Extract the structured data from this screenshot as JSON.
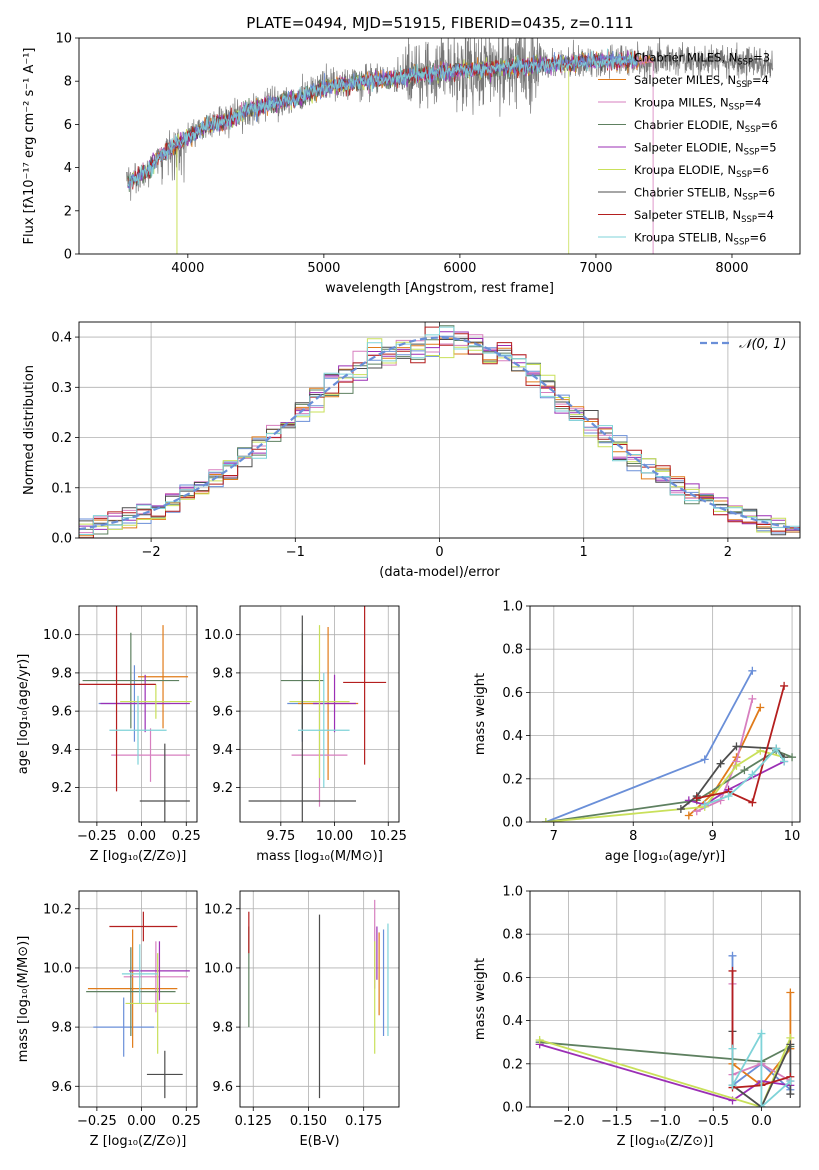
{
  "title": "PLATE=0494, MJD=51915, FIBERID=0435, z=0.111",
  "colors": [
    "#6a8fd8",
    "#e07b1a",
    "#d77fbf",
    "#5e8060",
    "#9b2fb5",
    "#c9e05a",
    "#4d4d4d",
    "#b41f1f",
    "#7fd3d8"
  ],
  "chart_data": [
    {
      "id": "spectrum",
      "type": "line",
      "title": "PLATE=0494, MJD=51915, FIBERID=0435, z=0.111",
      "xlabel": "wavelength [Angstrom, rest frame]",
      "ylabel": "Flux [fλ10⁻¹⁷ erg cm⁻² s⁻¹ A⁻¹]",
      "xlim": [
        3200,
        8500
      ],
      "ylim": [
        0,
        10
      ],
      "xticks": [
        4000,
        5000,
        6000,
        7000,
        8000
      ],
      "yticks": [
        0,
        2,
        4,
        6,
        8,
        10
      ],
      "grid": false,
      "legend_position": "right",
      "legend": [
        {
          "main": "Chabrier MILES, N",
          "sub": "SSP",
          "tail": "=3"
        },
        {
          "main": "Salpeter MILES, N",
          "sub": "SSP",
          "tail": "=4"
        },
        {
          "main": "Kroupa MILES, N",
          "sub": "SSP",
          "tail": "=4"
        },
        {
          "main": "Chabrier ELODIE, N",
          "sub": "SSP",
          "tail": "=6"
        },
        {
          "main": "Salpeter ELODIE, N",
          "sub": "SSP",
          "tail": "=5"
        },
        {
          "main": "Kroupa ELODIE, N",
          "sub": "SSP",
          "tail": "=6"
        },
        {
          "main": "Chabrier STELIB, N",
          "sub": "SSP",
          "tail": "=6"
        },
        {
          "main": "Salpeter STELIB, N",
          "sub": "SSP",
          "tail": "=4"
        },
        {
          "main": "Kroupa STELIB, N",
          "sub": "SSP",
          "tail": "=6"
        }
      ],
      "continuum": [
        [
          3550,
          3.3
        ],
        [
          3700,
          3.8
        ],
        [
          3800,
          4.6
        ],
        [
          3900,
          5.0
        ],
        [
          4000,
          5.4
        ],
        [
          4100,
          5.8
        ],
        [
          4300,
          6.2
        ],
        [
          4500,
          6.8
        ],
        [
          4800,
          7.2
        ],
        [
          5000,
          7.7
        ],
        [
          5300,
          8.0
        ],
        [
          5600,
          8.2
        ],
        [
          6000,
          8.5
        ],
        [
          6500,
          8.7
        ],
        [
          7000,
          8.9
        ],
        [
          7500,
          9.0
        ],
        [
          8000,
          8.9
        ],
        [
          8300,
          8.8
        ]
      ],
      "model_range": [
        3550,
        7450
      ],
      "data_range": [
        3550,
        8300
      ]
    },
    {
      "id": "residuals",
      "type": "histogram",
      "xlabel": "(data-model)/error",
      "ylabel": "Normed distribution",
      "xlim": [
        -2.5,
        2.5
      ],
      "ylim": [
        0,
        0.43
      ],
      "xticks": [
        -2,
        -1,
        0,
        1,
        2
      ],
      "yticks": [
        0.0,
        0.1,
        0.2,
        0.3,
        0.4
      ],
      "grid": true,
      "legend": {
        "label": "𝒩(0, 1)",
        "position": "top-right"
      },
      "bin_width": 0.1
    },
    {
      "id": "age_vs_Z",
      "type": "errorbar",
      "xlabel": "Z [log₁₀(Z/Z⊙)]",
      "ylabel": "age  [log₁₀(age/yr)]",
      "xlim": [
        -0.35,
        0.31
      ],
      "ylim": [
        9.02,
        10.15
      ],
      "xticks": [
        -0.25,
        0.0,
        0.25
      ],
      "xtick_labels": [
        "−0.25",
        "0.00",
        "0.25"
      ],
      "yticks": [
        9.2,
        9.4,
        9.6,
        9.8,
        10.0
      ],
      "grid": true,
      "points": [
        {
          "x": -0.04,
          "xerr": 0.2,
          "y": 9.64,
          "yerr": 0.2
        },
        {
          "x": 0.12,
          "xerr": 0.14,
          "y": 9.78,
          "yerr": 0.27
        },
        {
          "x": 0.05,
          "xerr": 0.22,
          "y": 9.37,
          "yerr": 0.14
        },
        {
          "x": -0.06,
          "xerr": 0.27,
          "y": 9.76,
          "yerr": 0.25
        },
        {
          "x": 0.02,
          "xerr": 0.25,
          "y": 9.64,
          "yerr": 0.15
        },
        {
          "x": 0.08,
          "xerr": 0.2,
          "y": 9.65,
          "yerr": 0.09
        },
        {
          "x": 0.13,
          "xerr": 0.14,
          "y": 9.13,
          "yerr": 0.3
        },
        {
          "x": -0.14,
          "xerr": 0.22,
          "y": 9.74,
          "yerr": 0.56
        },
        {
          "x": -0.02,
          "xerr": 0.16,
          "y": 9.5,
          "yerr": 0.18
        }
      ]
    },
    {
      "id": "age_vs_mass",
      "type": "errorbar",
      "xlabel": "mass [log₁₀(M/M⊙)]",
      "ylabel": "",
      "xlim": [
        9.56,
        10.3
      ],
      "ylim": [
        9.02,
        10.15
      ],
      "xticks": [
        9.75,
        10.0,
        10.25
      ],
      "xtick_labels": [
        "9.75",
        "10.00",
        "10.25"
      ],
      "yticks": [
        9.2,
        9.4,
        9.6,
        9.8,
        10.0
      ],
      "grid": true,
      "points": [
        {
          "x": 9.85,
          "xerr": 0.07,
          "y": 9.64,
          "yerr": 0.2
        },
        {
          "x": 9.97,
          "xerr": 0.14,
          "y": 9.64,
          "yerr": 0.4
        },
        {
          "x": 9.93,
          "xerr": 0.13,
          "y": 9.37,
          "yerr": 0.27
        },
        {
          "x": 9.85,
          "xerr": 0.1,
          "y": 9.76,
          "yerr": 0.25
        },
        {
          "x": 10.0,
          "xerr": 0.1,
          "y": 9.64,
          "yerr": 0.15
        },
        {
          "x": 9.93,
          "xerr": 0.14,
          "y": 9.65,
          "yerr": 0.4
        },
        {
          "x": 9.85,
          "xerr": 0.25,
          "y": 9.13,
          "yerr": 0.97
        },
        {
          "x": 10.14,
          "xerr": 0.1,
          "y": 9.75,
          "yerr": 0.43
        },
        {
          "x": 9.95,
          "xerr": 0.12,
          "y": 9.5,
          "yerr": 0.3
        }
      ]
    },
    {
      "id": "weight_vs_age",
      "type": "line",
      "xlabel": "age  [log₁₀(age/yr)]",
      "ylabel": "mass weight",
      "xlim": [
        6.7,
        10.1
      ],
      "ylim": [
        0,
        1.0
      ],
      "xticks": [
        7,
        8,
        9,
        10
      ],
      "yticks": [
        0.0,
        0.2,
        0.4,
        0.6,
        0.8,
        1.0
      ],
      "grid": true,
      "series": [
        {
          "x": [
            6.9,
            8.9,
            9.5
          ],
          "y": [
            0.0,
            0.29,
            0.7
          ]
        },
        {
          "x": [
            8.7,
            9.0,
            9.3,
            9.6
          ],
          "y": [
            0.03,
            0.13,
            0.3,
            0.53
          ]
        },
        {
          "x": [
            8.8,
            9.1,
            9.3,
            9.5
          ],
          "y": [
            0.05,
            0.1,
            0.28,
            0.57
          ]
        },
        {
          "x": [
            6.9,
            8.8,
            9.4,
            9.8,
            10.0
          ],
          "y": [
            0.0,
            0.1,
            0.24,
            0.33,
            0.3
          ]
        },
        {
          "x": [
            8.7,
            8.9,
            9.2,
            9.9
          ],
          "y": [
            0.1,
            0.08,
            0.15,
            0.28
          ]
        },
        {
          "x": [
            6.9,
            8.9,
            9.3,
            9.6,
            9.9
          ],
          "y": [
            0.0,
            0.07,
            0.26,
            0.33,
            0.3
          ]
        },
        {
          "x": [
            8.6,
            8.8,
            9.1,
            9.3,
            9.8,
            9.9
          ],
          "y": [
            0.06,
            0.12,
            0.27,
            0.35,
            0.34,
            0.3
          ]
        },
        {
          "x": [
            8.8,
            9.2,
            9.5,
            9.9
          ],
          "y": [
            0.11,
            0.14,
            0.09,
            0.63
          ]
        },
        {
          "x": [
            8.9,
            9.2,
            9.5,
            9.8,
            9.9
          ],
          "y": [
            0.08,
            0.12,
            0.22,
            0.34,
            0.28
          ]
        }
      ]
    },
    {
      "id": "mass_vs_Z",
      "type": "errorbar",
      "xlabel": "Z [log₁₀(Z/Z⊙)]",
      "ylabel": "mass [log₁₀(M/M⊙)]",
      "xlim": [
        -0.35,
        0.31
      ],
      "ylim": [
        9.53,
        10.26
      ],
      "xticks": [
        -0.25,
        0.0,
        0.25
      ],
      "xtick_labels": [
        "−0.25",
        "0.00",
        "0.25"
      ],
      "yticks": [
        9.6,
        9.8,
        10.0,
        10.2
      ],
      "grid": true,
      "points": [
        {
          "x": -0.1,
          "xerr": 0.17,
          "y": 9.8,
          "yerr": 0.1
        },
        {
          "x": -0.05,
          "xerr": 0.25,
          "y": 9.93,
          "yerr": 0.2
        },
        {
          "x": 0.08,
          "xerr": 0.18,
          "y": 9.97,
          "yerr": 0.12
        },
        {
          "x": -0.06,
          "xerr": 0.25,
          "y": 9.92,
          "yerr": 0.15
        },
        {
          "x": 0.1,
          "xerr": 0.17,
          "y": 9.99,
          "yerr": 0.1
        },
        {
          "x": 0.09,
          "xerr": 0.18,
          "y": 9.88,
          "yerr": 0.17
        },
        {
          "x": 0.13,
          "xerr": 0.1,
          "y": 9.64,
          "yerr": 0.08
        },
        {
          "x": 0.01,
          "xerr": 0.19,
          "y": 10.14,
          "yerr": 0.05
        },
        {
          "x": -0.01,
          "xerr": 0.1,
          "y": 9.98,
          "yerr": 0.1
        }
      ]
    },
    {
      "id": "mass_vs_ebv",
      "type": "errorbar",
      "xlabel": "E(B-V)",
      "ylabel": "",
      "xlim": [
        0.119,
        0.191
      ],
      "ylim": [
        9.53,
        10.26
      ],
      "xticks": [
        0.125,
        0.15,
        0.175
      ],
      "xtick_labels": [
        "0.125",
        "0.150",
        "0.175"
      ],
      "yticks": [
        9.6,
        9.8,
        10.0,
        10.2
      ],
      "grid": true,
      "points": [
        {
          "x": 0.184,
          "xerr": 0,
          "y": 9.95,
          "yerr": 0.18
        },
        {
          "x": 0.182,
          "xerr": 0,
          "y": 9.98,
          "yerr": 0.14
        },
        {
          "x": 0.18,
          "xerr": 0,
          "y": 10.08,
          "yerr": 0.15
        },
        {
          "x": 0.123,
          "xerr": 0,
          "y": 9.97,
          "yerr": 0.17
        },
        {
          "x": 0.181,
          "xerr": 0,
          "y": 10.05,
          "yerr": 0.09
        },
        {
          "x": 0.18,
          "xerr": 0,
          "y": 9.9,
          "yerr": 0.19
        },
        {
          "x": 0.155,
          "xerr": 0,
          "y": 9.87,
          "yerr": 0.31
        },
        {
          "x": 0.123,
          "xerr": 0,
          "y": 10.12,
          "yerr": 0.07
        },
        {
          "x": 0.186,
          "xerr": 0,
          "y": 9.96,
          "yerr": 0.19
        }
      ]
    },
    {
      "id": "weight_vs_Z",
      "type": "line",
      "xlabel": "Z [log₁₀(Z/Z⊙)]",
      "ylabel": "mass weight",
      "xlim": [
        -2.4,
        0.4
      ],
      "ylim": [
        0,
        1.0
      ],
      "xticks": [
        -2.0,
        -1.5,
        -1.0,
        -0.5,
        0.0
      ],
      "xtick_labels": [
        "−2.0",
        "−1.5",
        "−1.0",
        "−0.5",
        "0.0"
      ],
      "yticks": [
        0.0,
        0.2,
        0.4,
        0.6,
        0.8,
        1.0
      ],
      "grid": true,
      "series": [
        {
          "x": [
            -0.3,
            -0.3,
            0.0,
            0.3
          ],
          "y": [
            0.7,
            0.1,
            0.2,
            0.08
          ]
        },
        {
          "x": [
            -0.3,
            0.0,
            0.3,
            0.3
          ],
          "y": [
            0.2,
            0.1,
            0.27,
            0.53
          ]
        },
        {
          "x": [
            -0.3,
            -0.3,
            0.0,
            0.3
          ],
          "y": [
            0.57,
            0.15,
            0.2,
            0.12
          ]
        },
        {
          "x": [
            -2.3,
            0.0,
            0.3
          ],
          "y": [
            0.3,
            0.21,
            0.28
          ]
        },
        {
          "x": [
            -2.3,
            -0.3,
            0.0,
            0.3
          ],
          "y": [
            0.29,
            0.03,
            0.12,
            0.1
          ]
        },
        {
          "x": [
            -2.3,
            0.0,
            0.3
          ],
          "y": [
            0.31,
            0.0,
            0.32
          ]
        },
        {
          "x": [
            -0.3,
            -0.3,
            0.0,
            0.3,
            0.3
          ],
          "y": [
            0.35,
            0.1,
            0.0,
            0.29,
            0.06
          ]
        },
        {
          "x": [
            -0.3,
            -0.3,
            0.0,
            0.3
          ],
          "y": [
            0.63,
            0.09,
            0.1,
            0.14
          ]
        },
        {
          "x": [
            -0.3,
            -0.3,
            0.0,
            0.0,
            0.3
          ],
          "y": [
            0.27,
            0.1,
            0.34,
            0.0,
            0.12
          ]
        }
      ]
    }
  ]
}
